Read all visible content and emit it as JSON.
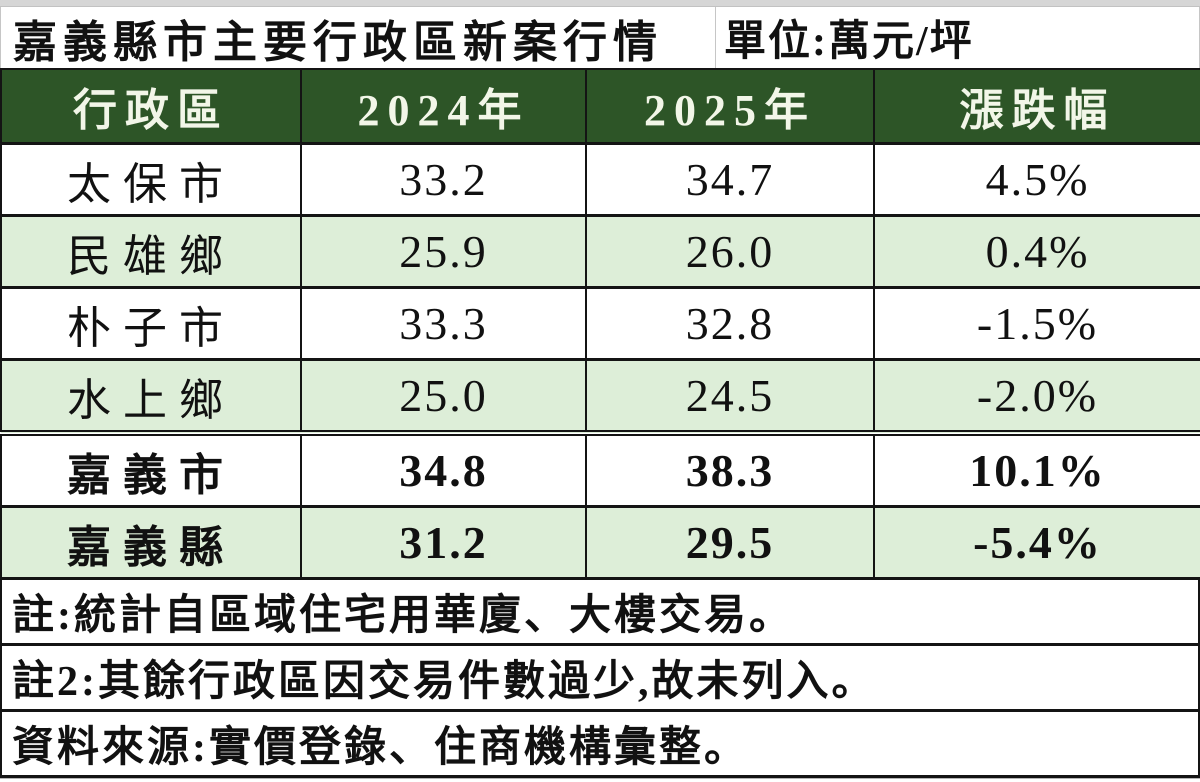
{
  "header": {
    "title": "嘉義縣市主要行政區新案行情",
    "unit": "單位:萬元/坪"
  },
  "table": {
    "columns": [
      "行政區",
      "2024年",
      "2025年",
      "漲跌幅"
    ],
    "rows": [
      {
        "district": "太保市",
        "y2024": "33.2",
        "y2025": "34.7",
        "change": "4.5%"
      },
      {
        "district": "民雄鄉",
        "y2024": "25.9",
        "y2025": "26.0",
        "change": "0.4%"
      },
      {
        "district": "朴子市",
        "y2024": "33.3",
        "y2025": "32.8",
        "change": "-1.5%"
      },
      {
        "district": "水上鄉",
        "y2024": "25.0",
        "y2025": "24.5",
        "change": "-2.0%"
      },
      {
        "district": "嘉義市",
        "y2024": "34.8",
        "y2025": "38.3",
        "change": "10.1%"
      },
      {
        "district": "嘉義縣",
        "y2024": "31.2",
        "y2025": "29.5",
        "change": "-5.4%"
      }
    ]
  },
  "notes": [
    "註:統計自區域住宅用華廈、大樓交易。",
    "註2:其餘行政區因交易件數過少,故未列入。",
    "資料來源:實價登錄、住商機構彙整。"
  ],
  "colors": {
    "header_bg": "#2d5527",
    "header_text": "#f2f6e8",
    "row_alt_bg": "#ddeed8",
    "border": "#141414"
  },
  "chart_data": {
    "type": "table",
    "title": "嘉義縣市主要行政區新案行情",
    "unit_label": "單位:萬元/坪",
    "unit": "萬元/坪",
    "categories": [
      "太保市",
      "民雄鄉",
      "朴子市",
      "水上鄉",
      "嘉義市",
      "嘉義縣"
    ],
    "series": [
      {
        "name": "2024年",
        "values": [
          33.2,
          25.9,
          33.3,
          25.0,
          34.8,
          31.2
        ]
      },
      {
        "name": "2025年",
        "values": [
          34.7,
          26.0,
          32.8,
          24.5,
          38.3,
          29.5
        ]
      },
      {
        "name": "漲跌幅",
        "values": [
          "4.5%",
          "0.4%",
          "-1.5%",
          "-2.0%",
          "10.1%",
          "-5.4%"
        ]
      }
    ],
    "emphasized_rows": [
      "嘉義市",
      "嘉義縣"
    ],
    "footnotes": [
      "註:統計自區域住宅用華廈、大樓交易。",
      "註2:其餘行政區因交易件數過少,故未列入。",
      "資料來源:實價登錄、住商機構彙整。"
    ]
  }
}
